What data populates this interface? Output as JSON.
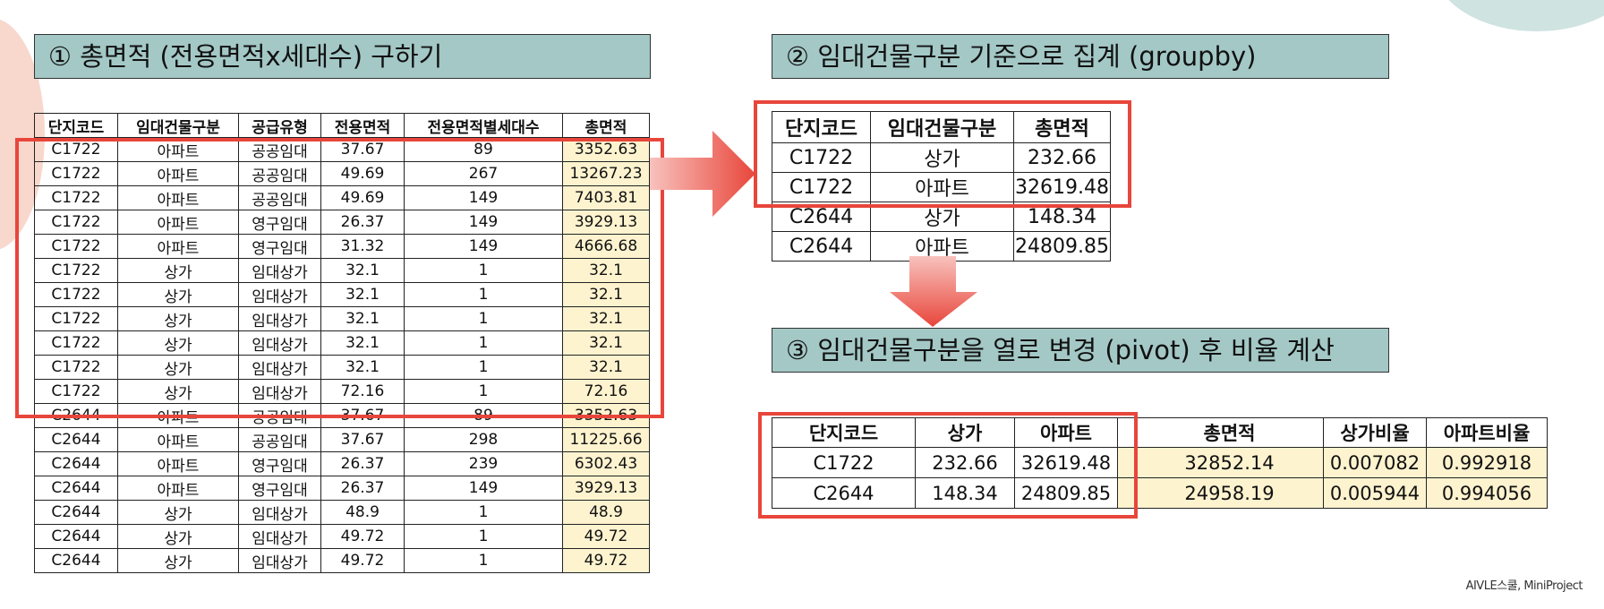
{
  "section1": {
    "title": "① 총면적 (전용면적x세대수) 구하기"
  },
  "section2": {
    "title": "② 임대건물구분 기준으로 집계 (groupby)"
  },
  "section3": {
    "title": "③ 임대건물구분을 열로 변경 (pivot) 후 비율 계산"
  },
  "table1": {
    "headers": [
      "단지코드",
      "임대건물구분",
      "공급유형",
      "전용면적",
      "전용면적별세대수",
      "총면적"
    ],
    "rows": [
      [
        "C1722",
        "아파트",
        "공공임대",
        "37.67",
        "89",
        "3352.63"
      ],
      [
        "C1722",
        "아파트",
        "공공임대",
        "49.69",
        "267",
        "13267.23"
      ],
      [
        "C1722",
        "아파트",
        "공공임대",
        "49.69",
        "149",
        "7403.81"
      ],
      [
        "C1722",
        "아파트",
        "영구임대",
        "26.37",
        "149",
        "3929.13"
      ],
      [
        "C1722",
        "아파트",
        "영구임대",
        "31.32",
        "149",
        "4666.68"
      ],
      [
        "C1722",
        "상가",
        "임대상가",
        "32.1",
        "1",
        "32.1"
      ],
      [
        "C1722",
        "상가",
        "임대상가",
        "32.1",
        "1",
        "32.1"
      ],
      [
        "C1722",
        "상가",
        "임대상가",
        "32.1",
        "1",
        "32.1"
      ],
      [
        "C1722",
        "상가",
        "임대상가",
        "32.1",
        "1",
        "32.1"
      ],
      [
        "C1722",
        "상가",
        "임대상가",
        "32.1",
        "1",
        "32.1"
      ],
      [
        "C1722",
        "상가",
        "임대상가",
        "72.16",
        "1",
        "72.16"
      ],
      [
        "C2644",
        "아파트",
        "공공임대",
        "37.67",
        "89",
        "3352.63"
      ],
      [
        "C2644",
        "아파트",
        "공공임대",
        "37.67",
        "298",
        "11225.66"
      ],
      [
        "C2644",
        "아파트",
        "영구임대",
        "26.37",
        "239",
        "6302.43"
      ],
      [
        "C2644",
        "아파트",
        "영구임대",
        "26.37",
        "149",
        "3929.13"
      ],
      [
        "C2644",
        "상가",
        "임대상가",
        "48.9",
        "1",
        "48.9"
      ],
      [
        "C2644",
        "상가",
        "임대상가",
        "49.72",
        "1",
        "49.72"
      ],
      [
        "C2644",
        "상가",
        "임대상가",
        "49.72",
        "1",
        "49.72"
      ]
    ]
  },
  "table2": {
    "headers": [
      "단지코드",
      "임대건물구분",
      "총면적"
    ],
    "rows": [
      [
        "C1722",
        "상가",
        "232.66"
      ],
      [
        "C1722",
        "아파트",
        "32619.48"
      ],
      [
        "C2644",
        "상가",
        "148.34"
      ],
      [
        "C2644",
        "아파트",
        "24809.85"
      ]
    ]
  },
  "table3": {
    "headers": [
      "단지코드",
      "상가",
      "아파트",
      "",
      "총면적",
      "상가비율",
      "아파트비율"
    ],
    "rows": [
      [
        "C1722",
        "232.66",
        "32619.48",
        "",
        "32852.14",
        "0.007082",
        "0.992918"
      ],
      [
        "C2644",
        "148.34",
        "24809.85",
        "",
        "24958.19",
        "0.005944",
        "0.994056"
      ]
    ]
  },
  "footer": {
    "text": "AIVLE스쿨, MiniProject"
  },
  "colors": {
    "title_bg": "#a3c8c6",
    "highlight_bg": "#fdf3cf",
    "accent_red": "#e8463b"
  }
}
